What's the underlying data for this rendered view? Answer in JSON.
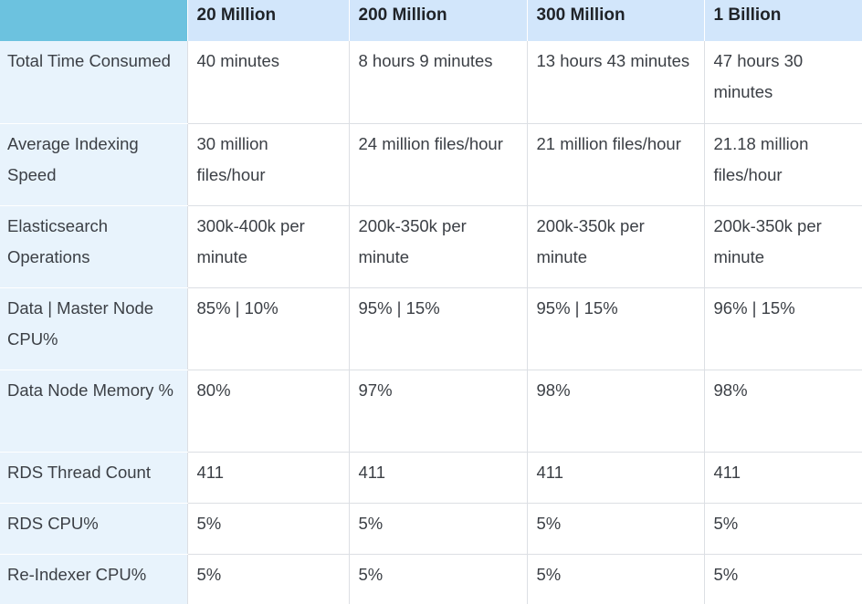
{
  "table": {
    "corner_header": "",
    "columns": [
      "20 Million",
      "200 Million",
      "300 Million",
      "1 Billion"
    ],
    "rows": [
      {
        "label": "Total Time Consumed",
        "values": [
          "40 minutes",
          "8 hours 9 minutes",
          "13 hours 43 minutes",
          "47 hours 30 minutes"
        ]
      },
      {
        "label": "Average Indexing Speed",
        "values": [
          "30 million files/hour",
          "24 million files/hour",
          "21 million files/hour",
          "21.18 million files/hour"
        ]
      },
      {
        "label": "Elasticsearch Operations",
        "values": [
          "300k-400k per minute",
          "200k-350k per minute",
          "200k-350k per minute",
          "200k-350k per minute"
        ]
      },
      {
        "label": "Data | Master Node CPU%",
        "values": [
          "85% | 10%",
          "95% | 15%",
          "95% | 15%",
          "96% | 15%"
        ]
      },
      {
        "label": "Data Node Memory %",
        "values": [
          "80%",
          "97%",
          "98%",
          "98%"
        ]
      },
      {
        "label": "RDS Thread Count",
        "values": [
          "411",
          "411",
          "411",
          "411"
        ]
      },
      {
        "label": "RDS CPU%",
        "values": [
          "5%",
          "5%",
          "5%",
          "5%"
        ]
      },
      {
        "label": "Re-Indexer CPU%",
        "values": [
          "5%",
          "5%",
          "5%",
          "5%"
        ]
      }
    ]
  },
  "colors": {
    "corner": "#6cc2df",
    "header": "#d2e6fb",
    "row_header": "#e8f3fc",
    "grid": "#dcdfe4"
  }
}
